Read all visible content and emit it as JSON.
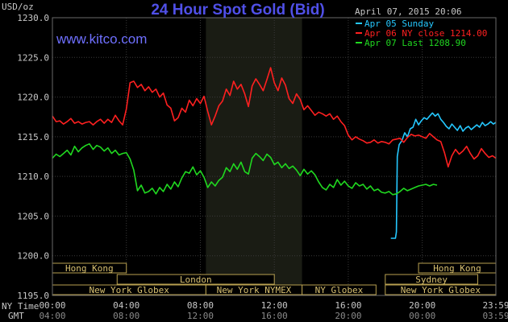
{
  "chart_data": {
    "type": "line",
    "title": "24 Hour Spot Gold (Bid)",
    "source": "www.kitco.com",
    "datetime": "April 07, 2015 20:06",
    "ylabel": "USD/oz",
    "ylim": [
      1195,
      1230
    ],
    "yticks": [
      "1195.0",
      "1200.0",
      "1205.0",
      "1210.0",
      "1215.0",
      "1220.0",
      "1225.0",
      "1230.0"
    ],
    "x_label_ny": "NY Time",
    "x_label_gmt": "GMT",
    "xticks_ny": [
      "00:00",
      "04:00",
      "08:00",
      "12:00",
      "16:00",
      "20:00",
      "23:59"
    ],
    "xticks_gmt": [
      "04:00",
      "08:00",
      "12:00",
      "16:00",
      "20:00",
      "00:00",
      "03:59"
    ],
    "xtick_hours": [
      0,
      4,
      8,
      12,
      16,
      20,
      23.983
    ],
    "xlim_hours": [
      0,
      23.983
    ],
    "grid": true,
    "highlight_hours": [
      8.3,
      13.5
    ],
    "legend_position": "top-right",
    "series": [
      {
        "name": "Apr 05 Sunday",
        "label": "Apr 05 Sunday",
        "color": "#25c8ff",
        "x": [
          18.3,
          18.55,
          18.6,
          18.65,
          18.75,
          18.9,
          19.05,
          19.2,
          19.35,
          19.5,
          19.65,
          19.8,
          19.95,
          20.1,
          20.25,
          20.4,
          20.55,
          20.7,
          20.85,
          21.0,
          21.15,
          21.3,
          21.45,
          21.6,
          21.75,
          21.9,
          22.05,
          22.2,
          22.35,
          22.5,
          22.65,
          22.8,
          22.95,
          23.1,
          23.25,
          23.4,
          23.55,
          23.7,
          23.85,
          23.98
        ],
        "y": [
          1202.2,
          1202.2,
          1203.0,
          1212.5,
          1214.0,
          1214.5,
          1215.5,
          1215.0,
          1216.0,
          1216.2,
          1217.2,
          1216.5,
          1217.0,
          1217.4,
          1217.2,
          1217.6,
          1218.0,
          1217.6,
          1217.9,
          1217.2,
          1216.8,
          1216.3,
          1216.0,
          1216.6,
          1216.2,
          1215.8,
          1216.4,
          1215.7,
          1216.1,
          1216.3,
          1215.9,
          1216.2,
          1216.5,
          1216.2,
          1216.8,
          1216.4,
          1216.6,
          1216.9,
          1216.6,
          1216.8
        ]
      },
      {
        "name": "Apr 06 NY close",
        "label": "Apr 06 NY close 1214.00",
        "color": "#ff2020",
        "x": [
          0.0,
          0.2,
          0.4,
          0.6,
          0.8,
          1.0,
          1.2,
          1.4,
          1.6,
          1.8,
          2.0,
          2.2,
          2.4,
          2.6,
          2.8,
          3.0,
          3.2,
          3.4,
          3.6,
          3.8,
          4.0,
          4.2,
          4.4,
          4.6,
          4.8,
          5.0,
          5.2,
          5.4,
          5.6,
          5.8,
          6.0,
          6.2,
          6.4,
          6.6,
          6.8,
          7.0,
          7.2,
          7.4,
          7.6,
          7.8,
          8.0,
          8.2,
          8.4,
          8.6,
          8.8,
          9.0,
          9.2,
          9.4,
          9.6,
          9.8,
          10.0,
          10.2,
          10.4,
          10.6,
          10.8,
          11.0,
          11.2,
          11.4,
          11.6,
          11.8,
          12.0,
          12.2,
          12.4,
          12.6,
          12.8,
          13.0,
          13.2,
          13.4,
          13.6,
          13.8,
          14.0,
          14.2,
          14.4,
          14.6,
          14.8,
          15.0,
          15.2,
          15.4,
          15.6,
          15.8,
          16.0,
          16.2,
          16.4,
          16.6,
          16.8,
          17.0,
          17.2,
          17.4,
          17.6,
          17.8,
          18.0,
          18.2,
          18.4,
          18.6,
          18.8,
          19.0,
          19.2,
          19.4,
          19.6,
          19.8,
          20.0,
          20.2,
          20.4,
          20.6,
          20.8,
          21.0,
          21.2,
          21.4,
          21.6,
          21.8,
          22.0,
          22.2,
          22.4,
          22.6,
          22.8,
          23.0,
          23.2,
          23.4,
          23.6,
          23.8,
          23.98
        ],
        "y": [
          1217.6,
          1216.9,
          1217.0,
          1216.6,
          1216.9,
          1217.3,
          1216.7,
          1216.9,
          1216.6,
          1216.8,
          1216.9,
          1216.5,
          1216.9,
          1217.2,
          1216.7,
          1217.2,
          1216.8,
          1217.7,
          1217.0,
          1216.5,
          1218.5,
          1221.8,
          1222.0,
          1221.2,
          1221.6,
          1220.8,
          1221.3,
          1220.6,
          1221.0,
          1220.0,
          1220.5,
          1219.0,
          1218.6,
          1217.0,
          1217.4,
          1218.6,
          1218.1,
          1219.6,
          1218.9,
          1219.8,
          1219.2,
          1220.1,
          1218.2,
          1216.5,
          1217.6,
          1218.9,
          1219.5,
          1221.0,
          1220.2,
          1222.0,
          1221.0,
          1221.6,
          1220.4,
          1218.8,
          1221.4,
          1222.3,
          1221.6,
          1220.8,
          1222.2,
          1223.7,
          1221.8,
          1220.8,
          1222.4,
          1221.5,
          1219.8,
          1219.2,
          1220.4,
          1219.7,
          1218.4,
          1218.9,
          1218.3,
          1217.7,
          1218.1,
          1217.9,
          1217.6,
          1217.9,
          1217.2,
          1217.6,
          1216.9,
          1216.4,
          1215.2,
          1214.6,
          1215.0,
          1214.7,
          1214.5,
          1214.2,
          1214.3,
          1214.6,
          1214.2,
          1214.4,
          1214.3,
          1214.1,
          1214.6,
          1214.7,
          1214.8,
          1214.3,
          1214.9,
          1215.3,
          1215.1,
          1215.2,
          1215.0,
          1214.8,
          1215.4,
          1215.0,
          1214.6,
          1214.4,
          1213.0,
          1211.2,
          1212.6,
          1213.4,
          1212.8,
          1213.2,
          1213.8,
          1212.9,
          1212.2,
          1212.6,
          1213.5,
          1212.9,
          1212.4,
          1212.6,
          1212.3
        ]
      },
      {
        "name": "Apr 07 Last",
        "label": "Apr 07 Last 1208.90",
        "color": "#20d820",
        "x": [
          0.0,
          0.2,
          0.4,
          0.6,
          0.8,
          1.0,
          1.2,
          1.4,
          1.6,
          1.8,
          2.0,
          2.2,
          2.4,
          2.6,
          2.8,
          3.0,
          3.2,
          3.4,
          3.6,
          3.8,
          4.0,
          4.2,
          4.4,
          4.6,
          4.8,
          5.0,
          5.2,
          5.4,
          5.6,
          5.8,
          6.0,
          6.2,
          6.4,
          6.6,
          6.8,
          7.0,
          7.2,
          7.4,
          7.6,
          7.8,
          8.0,
          8.2,
          8.4,
          8.6,
          8.8,
          9.0,
          9.2,
          9.4,
          9.6,
          9.8,
          10.0,
          10.2,
          10.4,
          10.6,
          10.8,
          11.0,
          11.2,
          11.4,
          11.6,
          11.8,
          12.0,
          12.2,
          12.4,
          12.6,
          12.8,
          13.0,
          13.2,
          13.4,
          13.6,
          13.8,
          14.0,
          14.2,
          14.4,
          14.6,
          14.8,
          15.0,
          15.2,
          15.4,
          15.6,
          15.8,
          16.0,
          16.2,
          16.4,
          16.6,
          16.8,
          17.0,
          17.2,
          17.4,
          17.6,
          17.8,
          18.0,
          18.2,
          18.4,
          18.6,
          18.8,
          19.0,
          19.2,
          19.4,
          19.6,
          19.8,
          20.0,
          20.2,
          20.4,
          20.6,
          20.8
        ],
        "y": [
          1212.3,
          1212.8,
          1212.5,
          1212.9,
          1213.3,
          1212.7,
          1213.8,
          1213.1,
          1213.6,
          1213.9,
          1214.1,
          1213.4,
          1213.9,
          1213.7,
          1213.2,
          1213.6,
          1212.9,
          1213.3,
          1212.7,
          1212.9,
          1213.0,
          1212.2,
          1210.8,
          1208.2,
          1208.9,
          1207.9,
          1208.1,
          1208.5,
          1207.8,
          1208.6,
          1208.1,
          1209.0,
          1208.4,
          1209.3,
          1208.7,
          1209.8,
          1210.6,
          1210.4,
          1211.2,
          1210.2,
          1210.7,
          1209.9,
          1208.6,
          1209.3,
          1208.8,
          1209.5,
          1209.9,
          1211.1,
          1210.6,
          1211.6,
          1210.9,
          1211.8,
          1210.6,
          1210.3,
          1212.3,
          1212.9,
          1212.5,
          1212.0,
          1212.8,
          1212.4,
          1211.5,
          1211.8,
          1211.1,
          1211.6,
          1211.0,
          1211.3,
          1210.8,
          1210.1,
          1210.9,
          1210.3,
          1210.7,
          1210.2,
          1209.3,
          1208.6,
          1208.3,
          1209.0,
          1208.6,
          1209.6,
          1208.9,
          1209.4,
          1208.8,
          1208.5,
          1209.2,
          1208.8,
          1209.0,
          1208.4,
          1208.8,
          1208.2,
          1208.4,
          1208.0,
          1207.9,
          1208.1,
          1207.7,
          1207.8,
          1208.1,
          1208.5,
          1208.2,
          1208.4,
          1208.6,
          1208.8,
          1208.9,
          1209.0,
          1208.8,
          1209.0,
          1208.9
        ]
      }
    ],
    "markets": [
      {
        "name": "Hong Kong",
        "row": 0,
        "start": 0.0,
        "end": 4.0
      },
      {
        "name": "Hong Kong",
        "row": 0,
        "start": 19.8,
        "end": 23.98
      },
      {
        "name": "London",
        "row": 1,
        "start": 3.5,
        "end": 12.0
      },
      {
        "name": "Sydney",
        "row": 1,
        "start": 18.0,
        "end": 23.0
      },
      {
        "name": "New York Globex",
        "row": 2,
        "start": 0.0,
        "end": 8.3
      },
      {
        "name": "New York NYMEX",
        "row": 2,
        "start": 8.3,
        "end": 13.5
      },
      {
        "name": "NY Globex",
        "row": 2,
        "start": 13.5,
        "end": 17.5
      },
      {
        "name": "New York Globex",
        "row": 2,
        "start": 18.0,
        "end": 23.98
      }
    ]
  }
}
